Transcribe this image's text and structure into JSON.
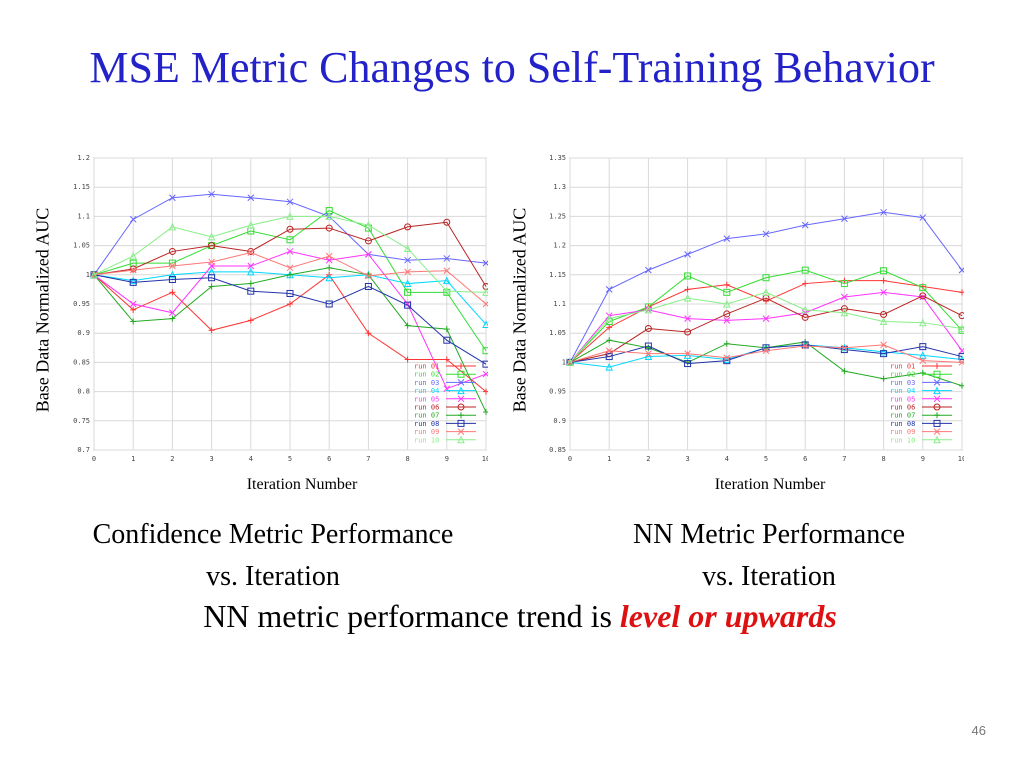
{
  "slide": {
    "title": "MSE Metric Changes to Self-Training Behavior",
    "caption_left_line1": "Confidence Metric Performance",
    "caption_left_line2": "vs. Iteration",
    "caption_right_line1": "NN Metric Performance",
    "caption_right_line2": "vs. Iteration",
    "trend_prefix": "NN metric performance trend is ",
    "trend_emphasis": "level or upwards",
    "page_number": "46"
  },
  "chart_data": [
    {
      "type": "line",
      "xlabel": "Iteration Number",
      "ylabel": "Base Data Normalized AUC",
      "x": [
        0,
        1,
        2,
        3,
        4,
        5,
        6,
        7,
        8,
        9,
        10
      ],
      "xlim": [
        0,
        10
      ],
      "ylim": [
        0.7,
        1.2
      ],
      "yticks": [
        "0.7",
        "0.75",
        "0.8",
        "0.85",
        "0.9",
        "0.95",
        "1",
        "1.05",
        "1.1",
        "1.15",
        "1.2"
      ],
      "xticks": [
        "0",
        "1",
        "2",
        "3",
        "4",
        "5",
        "6",
        "7",
        "8",
        "9",
        "10"
      ],
      "grid": true,
      "legend_position": "bottom-right",
      "series": [
        {
          "name": "run 01",
          "color": "#ff3333",
          "marker": "plus",
          "values": [
            1.0,
            0.94,
            0.97,
            0.905,
            0.922,
            0.95,
            1.0,
            0.9,
            0.855,
            0.855,
            0.8
          ]
        },
        {
          "name": "run 02",
          "color": "#33dd33",
          "marker": "square",
          "values": [
            1.0,
            1.02,
            1.02,
            1.05,
            1.075,
            1.06,
            1.11,
            1.08,
            0.97,
            0.97,
            0.87
          ]
        },
        {
          "name": "run 03",
          "color": "#6666ff",
          "marker": "x",
          "values": [
            1.0,
            1.095,
            1.132,
            1.138,
            1.132,
            1.125,
            1.1,
            1.035,
            1.025,
            1.028,
            1.02
          ]
        },
        {
          "name": "run 04",
          "color": "#00d8ff",
          "marker": "triangle",
          "values": [
            1.0,
            0.99,
            1.0,
            1.005,
            1.005,
            1.0,
            0.995,
            1.0,
            0.985,
            0.99,
            0.915
          ]
        },
        {
          "name": "run 05",
          "color": "#ff33ff",
          "marker": "x",
          "values": [
            1.0,
            0.95,
            0.935,
            1.015,
            1.015,
            1.04,
            1.025,
            1.035,
            0.95,
            0.805,
            0.83
          ]
        },
        {
          "name": "run 06",
          "color": "#bb2222",
          "marker": "circle",
          "values": [
            1.0,
            1.01,
            1.04,
            1.05,
            1.04,
            1.078,
            1.08,
            1.058,
            1.082,
            1.09,
            0.98
          ]
        },
        {
          "name": "run 07",
          "color": "#22aa22",
          "marker": "plus",
          "values": [
            1.0,
            0.92,
            0.925,
            0.98,
            0.985,
            1.0,
            1.012,
            1.0,
            0.913,
            0.907,
            0.765
          ]
        },
        {
          "name": "run 08",
          "color": "#2233aa",
          "marker": "square",
          "values": [
            1.0,
            0.987,
            0.992,
            0.995,
            0.972,
            0.968,
            0.95,
            0.98,
            0.948,
            0.888,
            0.847
          ]
        },
        {
          "name": "run 09",
          "color": "#ff7777",
          "marker": "x",
          "values": [
            1.0,
            1.008,
            1.015,
            1.022,
            1.038,
            1.012,
            1.032,
            0.998,
            1.005,
            1.007,
            0.95
          ]
        },
        {
          "name": "run 10",
          "color": "#88ee88",
          "marker": "triangle",
          "values": [
            1.0,
            1.032,
            1.082,
            1.065,
            1.085,
            1.1,
            1.1,
            1.085,
            1.045,
            0.972,
            0.97
          ]
        }
      ]
    },
    {
      "type": "line",
      "xlabel": "Iteration Number",
      "ylabel": "Base Data Normalized AUC",
      "x": [
        0,
        1,
        2,
        3,
        4,
        5,
        6,
        7,
        8,
        9,
        10
      ],
      "xlim": [
        0,
        10
      ],
      "ylim": [
        0.85,
        1.35
      ],
      "yticks": [
        "0.85",
        "0.9",
        "0.95",
        "1",
        "1.05",
        "1.1",
        "1.15",
        "1.2",
        "1.25",
        "1.3",
        "1.35"
      ],
      "xticks": [
        "0",
        "1",
        "2",
        "3",
        "4",
        "5",
        "6",
        "7",
        "8",
        "9",
        "10"
      ],
      "grid": true,
      "legend_position": "bottom-right",
      "series": [
        {
          "name": "run 01",
          "color": "#ff3333",
          "marker": "plus",
          "values": [
            1.0,
            1.06,
            1.095,
            1.125,
            1.133,
            1.105,
            1.135,
            1.14,
            1.14,
            1.13,
            1.12
          ]
        },
        {
          "name": "run 02",
          "color": "#33dd33",
          "marker": "square",
          "values": [
            1.0,
            1.07,
            1.095,
            1.148,
            1.12,
            1.145,
            1.158,
            1.135,
            1.157,
            1.128,
            1.055
          ]
        },
        {
          "name": "run 03",
          "color": "#6666ff",
          "marker": "x",
          "values": [
            1.0,
            1.125,
            1.158,
            1.185,
            1.212,
            1.22,
            1.235,
            1.246,
            1.257,
            1.248,
            1.158
          ]
        },
        {
          "name": "run 04",
          "color": "#00d8ff",
          "marker": "triangle",
          "values": [
            1.0,
            0.992,
            1.01,
            1.012,
            1.005,
            1.025,
            1.03,
            1.025,
            1.018,
            1.012,
            1.005
          ]
        },
        {
          "name": "run 05",
          "color": "#ff33ff",
          "marker": "x",
          "values": [
            1.0,
            1.08,
            1.09,
            1.075,
            1.072,
            1.075,
            1.085,
            1.112,
            1.12,
            1.112,
            1.02
          ]
        },
        {
          "name": "run 06",
          "color": "#bb2222",
          "marker": "circle",
          "values": [
            1.0,
            1.015,
            1.058,
            1.052,
            1.083,
            1.11,
            1.077,
            1.092,
            1.082,
            1.114,
            1.08
          ]
        },
        {
          "name": "run 07",
          "color": "#22aa22",
          "marker": "plus",
          "values": [
            1.0,
            1.038,
            1.025,
            1.0,
            1.032,
            1.025,
            1.035,
            0.985,
            0.972,
            0.982,
            0.96
          ]
        },
        {
          "name": "run 08",
          "color": "#2233aa",
          "marker": "square",
          "values": [
            1.0,
            1.01,
            1.028,
            0.998,
            1.003,
            1.025,
            1.03,
            1.022,
            1.015,
            1.027,
            1.01
          ]
        },
        {
          "name": "run 09",
          "color": "#ff7777",
          "marker": "x",
          "values": [
            1.0,
            1.02,
            1.015,
            1.015,
            1.008,
            1.02,
            1.028,
            1.025,
            1.03,
            1.003,
            1.0
          ]
        },
        {
          "name": "run 10",
          "color": "#88ee88",
          "marker": "triangle",
          "values": [
            1.0,
            1.075,
            1.09,
            1.11,
            1.1,
            1.12,
            1.09,
            1.085,
            1.07,
            1.068,
            1.058
          ]
        }
      ]
    }
  ]
}
